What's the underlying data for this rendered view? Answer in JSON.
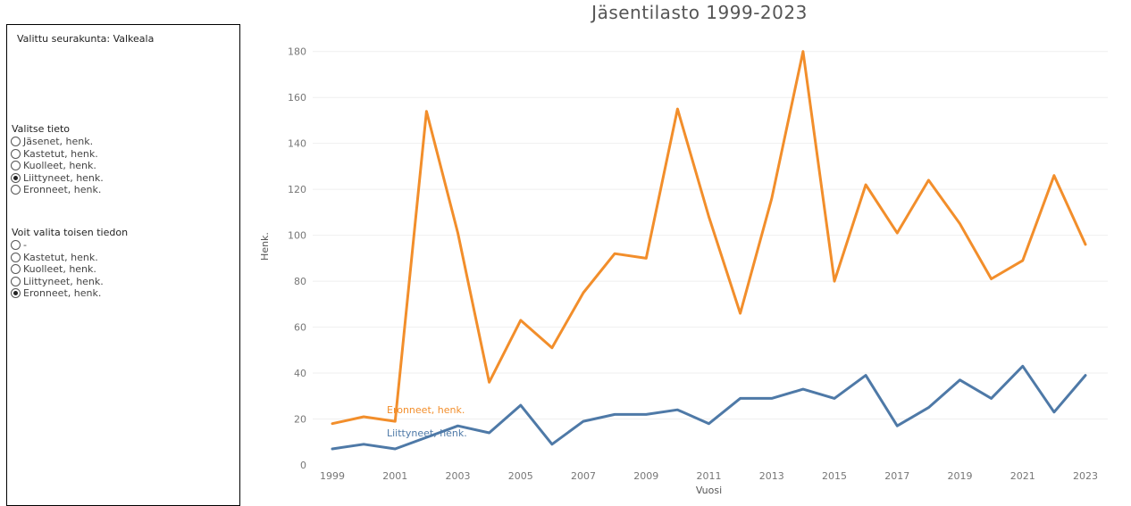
{
  "sidebar": {
    "selected_parish": "Valittu seurakunta: Valkeala",
    "primary": {
      "title": "Valitse tieto",
      "options": [
        {
          "label": "Jäsenet, henk.",
          "checked": false
        },
        {
          "label": "Kastetut, henk.",
          "checked": false
        },
        {
          "label": "Kuolleet, henk.",
          "checked": false
        },
        {
          "label": "Liittyneet, henk.",
          "checked": true
        },
        {
          "label": "Eronneet, henk.",
          "checked": false
        }
      ]
    },
    "secondary": {
      "title": "Voit valita toisen tiedon",
      "options": [
        {
          "label": "-",
          "checked": false
        },
        {
          "label": "Kastetut, henk.",
          "checked": false
        },
        {
          "label": "Kuolleet, henk.",
          "checked": false
        },
        {
          "label": "Liittyneet, henk.",
          "checked": false
        },
        {
          "label": "Eronneet, henk.",
          "checked": true
        }
      ]
    }
  },
  "chart_data": {
    "type": "line",
    "title": "Jäsentilasto 1999-2023",
    "xlabel": "Vuosi",
    "ylabel": "Henk.",
    "ylim": [
      0,
      190
    ],
    "xlim": [
      1999,
      2023
    ],
    "yticks": [
      0,
      20,
      40,
      60,
      80,
      100,
      120,
      140,
      160,
      180
    ],
    "xticks": [
      1999,
      2001,
      2003,
      2005,
      2007,
      2009,
      2011,
      2013,
      2015,
      2017,
      2019,
      2021,
      2023
    ],
    "grid": true,
    "x": [
      1999,
      2000,
      2001,
      2002,
      2003,
      2004,
      2005,
      2006,
      2007,
      2008,
      2009,
      2010,
      2011,
      2012,
      2013,
      2014,
      2015,
      2016,
      2017,
      2018,
      2019,
      2020,
      2021,
      2022,
      2023
    ],
    "series": [
      {
        "name": "Eronneet, henk.",
        "color": "#F28E2B",
        "values": [
          18,
          21,
          19,
          154,
          101,
          36,
          63,
          51,
          75,
          92,
          90,
          155,
          108,
          66,
          116,
          180,
          80,
          122,
          101,
          124,
          105,
          81,
          89,
          126,
          96
        ]
      },
      {
        "name": "Liittyneet, henk.",
        "color": "#4E79A7",
        "values": [
          7,
          9,
          7,
          12,
          17,
          14,
          26,
          9,
          19,
          22,
          22,
          24,
          18,
          29,
          29,
          33,
          29,
          39,
          17,
          25,
          37,
          29,
          43,
          23,
          39
        ]
      }
    ]
  }
}
